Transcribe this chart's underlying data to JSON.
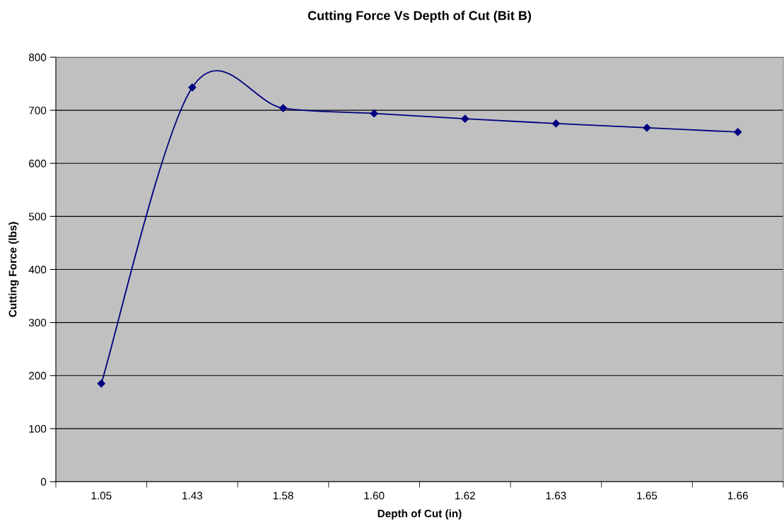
{
  "chart_data": {
    "type": "line",
    "title": "Cutting Force Vs Depth of Cut (Bit B)",
    "xlabel": "Depth of Cut (in)",
    "ylabel": "Cutting Force (lbs)",
    "categories": [
      "1.05",
      "1.43",
      "1.58",
      "1.60",
      "1.62",
      "1.63",
      "1.65",
      "1.66"
    ],
    "series": [
      {
        "color": "#000080",
        "values": [
          185,
          743,
          704,
          694,
          684,
          675,
          667,
          659
        ]
      }
    ],
    "ylim": [
      0,
      800
    ],
    "yticks": [
      0,
      100,
      200,
      300,
      400,
      500,
      600,
      700,
      800
    ],
    "grid": "y",
    "legend": false,
    "marker": "diamond",
    "line_style": "solid"
  }
}
